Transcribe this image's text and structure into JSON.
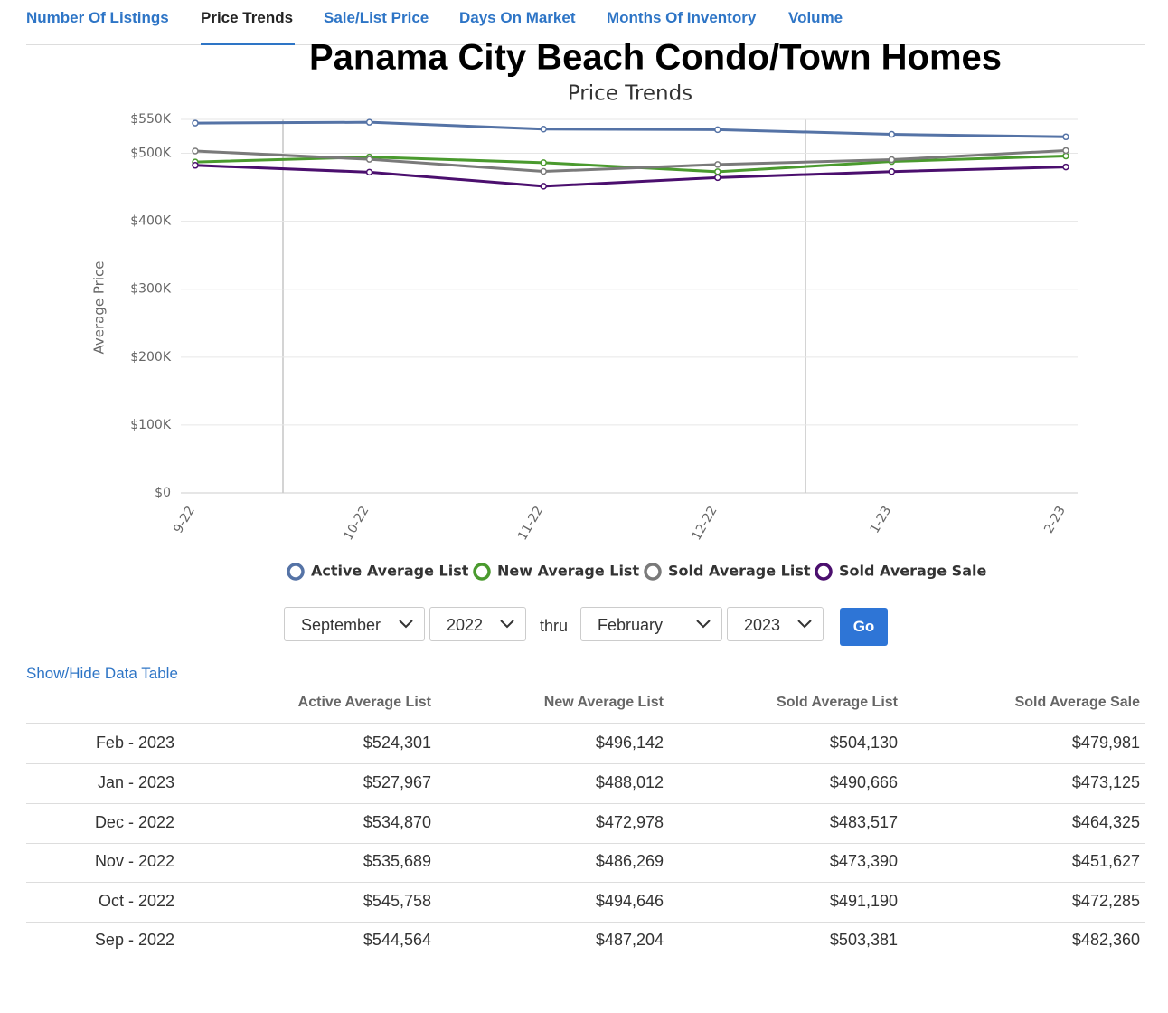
{
  "tabs": [
    "Number Of Listings",
    "Price Trends",
    "Sale/List Price",
    "Days On Market",
    "Months Of Inventory",
    "Volume"
  ],
  "chart_data": {
    "type": "line",
    "title": "Panama City Beach Condo/Town Homes",
    "subtitle": "Price Trends",
    "y_label": "Average Price",
    "categories": [
      "9-22",
      "10-22",
      "11-22",
      "12-22",
      "1-23",
      "2-23"
    ],
    "series": [
      {
        "name": "Active Average List",
        "color": "#5573a6",
        "values": [
          544564,
          545758,
          535689,
          534870,
          527967,
          524301
        ]
      },
      {
        "name": "New Average List",
        "color": "#4a9a2e",
        "values": [
          487204,
          494646,
          486269,
          472978,
          488012,
          496142
        ]
      },
      {
        "name": "Sold Average List",
        "color": "#7a7a7a",
        "values": [
          503381,
          491190,
          473390,
          483517,
          490666,
          504130
        ]
      },
      {
        "name": "Sold Average Sale",
        "color": "#4b0f6e",
        "values": [
          482360,
          472285,
          451627,
          464325,
          473125,
          479981
        ]
      }
    ],
    "ylim": [
      0,
      550000
    ],
    "yticks": [
      {
        "value": 0,
        "label": "$0"
      },
      {
        "value": 100000,
        "label": "$100K"
      },
      {
        "value": 200000,
        "label": "$200K"
      },
      {
        "value": 300000,
        "label": "$300K"
      },
      {
        "value": 400000,
        "label": "$400K"
      },
      {
        "value": 500000,
        "label": "$500K"
      },
      {
        "value": 550000,
        "label": "$550K"
      }
    ],
    "grid": true
  },
  "controls": {
    "from_month": "September",
    "from_year": "2022",
    "thru": "thru",
    "to_month": "February",
    "to_year": "2023",
    "go": "Go",
    "toggle_table": "Show/Hide Data Table"
  },
  "table": {
    "headers": [
      "Active Average List",
      "New Average List",
      "Sold Average List",
      "Sold Average Sale"
    ],
    "rows": [
      [
        "Feb - 2023",
        "$524,301",
        "$496,142",
        "$504,130",
        "$479,981"
      ],
      [
        "Jan - 2023",
        "$527,967",
        "$488,012",
        "$490,666",
        "$473,125"
      ],
      [
        "Dec - 2022",
        "$534,870",
        "$472,978",
        "$483,517",
        "$464,325"
      ],
      [
        "Nov - 2022",
        "$535,689",
        "$486,269",
        "$473,390",
        "$451,627"
      ],
      [
        "Oct - 2022",
        "$545,758",
        "$494,646",
        "$491,190",
        "$472,285"
      ],
      [
        "Sep - 2022",
        "$544,564",
        "$487,204",
        "$503,381",
        "$482,360"
      ]
    ]
  }
}
